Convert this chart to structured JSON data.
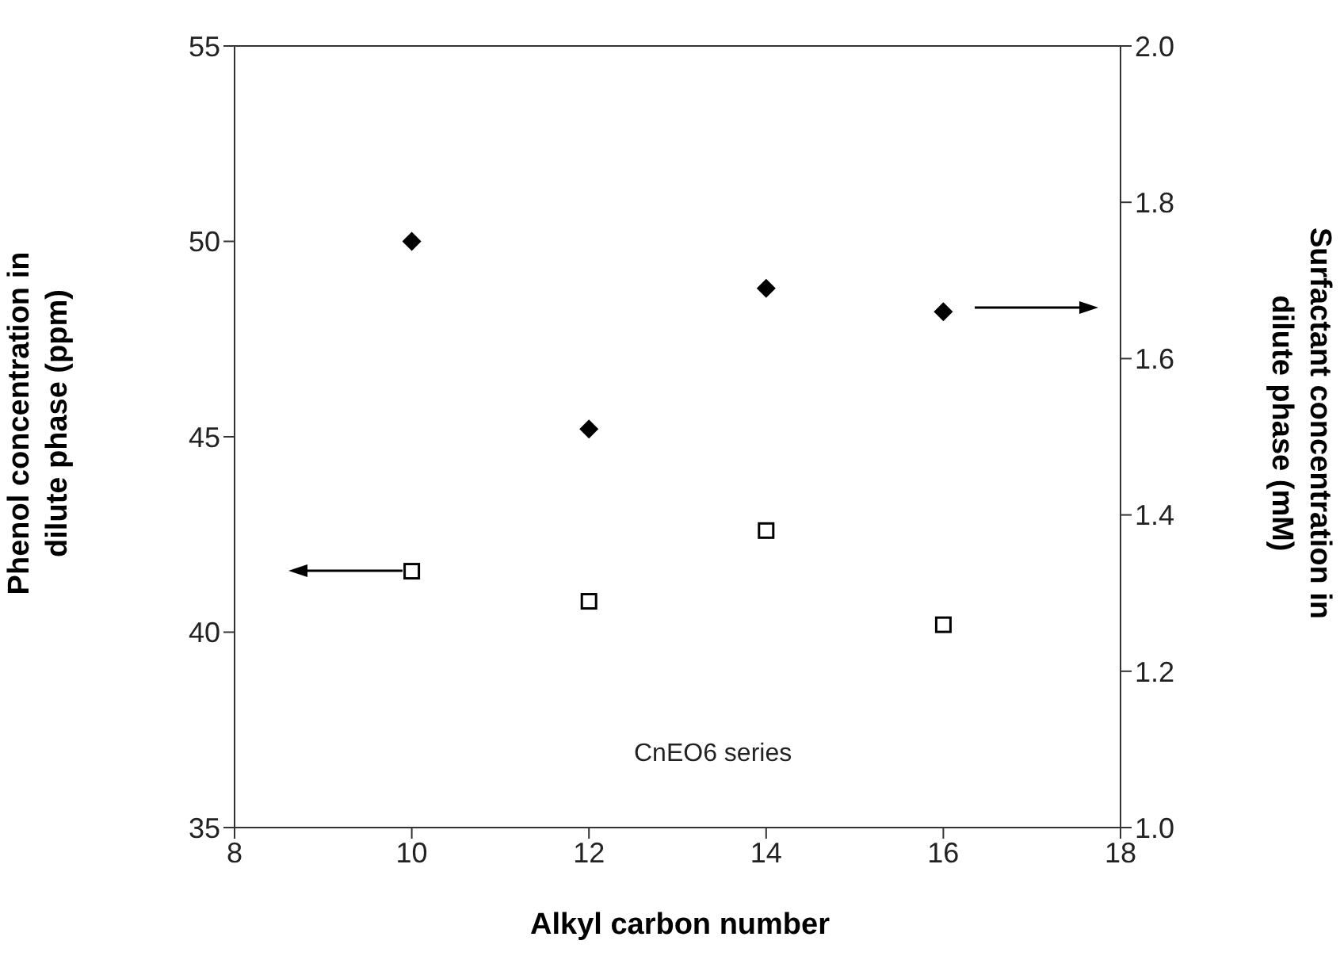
{
  "chart_data": {
    "type": "scatter",
    "xlabel": "Alkyl carbon number",
    "ylabel": "Phenol concentration in dilute phase (ppm)",
    "y2label": "Surfactant concentration in dilute phase (mM)",
    "x": [
      10,
      12,
      14,
      16
    ],
    "series": [
      {
        "color": "#000000",
        "marker": "square",
        "values": [
          41.56,
          40.79,
          42.6,
          40.19
        ]
      },
      {
        "color": "#000000",
        "marker": "diamond",
        "axis": "y2",
        "values": [
          1.75,
          1.51,
          1.69,
          1.66
        ]
      }
    ],
    "xlim": [
      8,
      18
    ],
    "xticks": [
      8,
      10,
      12,
      14,
      16,
      18
    ],
    "ylim": [
      35,
      55
    ],
    "yticks": [
      35,
      40,
      45,
      50,
      55
    ],
    "y2lim": [
      1.0,
      2.0
    ],
    "y2ticks": [
      {
        "value": 1.0,
        "label": "1.0"
      },
      1.2,
      1.4,
      1.6,
      1.8,
      {
        "value": 2.0,
        "label": "2.0"
      }
    ],
    "grid": false,
    "legend": false,
    "annotations": [
      "CnEO6 series"
    ]
  }
}
